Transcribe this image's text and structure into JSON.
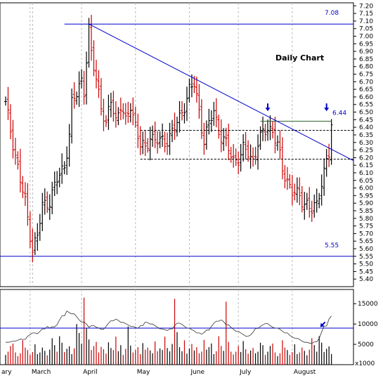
{
  "chart_data": [
    {
      "type": "ohlc",
      "title": "Daily Chart",
      "colors": {
        "up": "#000000",
        "down": "#cc0000",
        "lines": "#0000cc",
        "grid": "#bbbbbb"
      },
      "y_ticks": [
        "7.20",
        "7.15",
        "7.10",
        "7.05",
        "7.00",
        "6.95",
        "6.90",
        "6.85",
        "6.80",
        "6.75",
        "6.70",
        "6.65",
        "6.60",
        "6.55",
        "6.50",
        "6.45",
        "6.40",
        "6.35",
        "6.30",
        "6.25",
        "6.20",
        "6.15",
        "6.10",
        "6.05",
        "6.00",
        "5.95",
        "5.90",
        "5.85",
        "5.80",
        "5.75",
        "5.70",
        "5.65",
        "5.60",
        "5.55",
        "5.50",
        "5.45",
        "5.40"
      ],
      "ylim": [
        5.35,
        7.22
      ],
      "x_labels": [
        "ary",
        "March",
        "April",
        "May",
        "June",
        "July",
        "August"
      ],
      "month_start_bars": [
        -11,
        10,
        31,
        53,
        75,
        95,
        117
      ],
      "bar_count": 134,
      "anchors": [
        [
          0,
          6.55
        ],
        [
          3,
          6.3
        ],
        [
          6,
          6.05
        ],
        [
          8,
          5.9
        ],
        [
          9,
          5.8
        ],
        [
          11,
          5.6
        ],
        [
          13,
          5.68
        ],
        [
          15,
          5.88
        ],
        [
          18,
          5.92
        ],
        [
          21,
          6.05
        ],
        [
          24,
          6.15
        ],
        [
          26,
          6.35
        ],
        [
          27,
          6.55
        ],
        [
          29,
          6.62
        ],
        [
          31,
          6.72
        ],
        [
          32,
          6.65
        ],
        [
          34,
          7.03
        ],
        [
          35,
          6.88
        ],
        [
          37,
          6.72
        ],
        [
          39,
          6.55
        ],
        [
          41,
          6.4
        ],
        [
          43,
          6.58
        ],
        [
          45,
          6.45
        ],
        [
          47,
          6.55
        ],
        [
          49,
          6.42
        ],
        [
          51,
          6.55
        ],
        [
          53,
          6.42
        ],
        [
          55,
          6.28
        ],
        [
          57,
          6.25
        ],
        [
          59,
          6.35
        ],
        [
          61,
          6.32
        ],
        [
          63,
          6.3
        ],
        [
          65,
          6.3
        ],
        [
          67,
          6.35
        ],
        [
          69,
          6.4
        ],
        [
          71,
          6.45
        ],
        [
          73,
          6.55
        ],
        [
          75,
          6.65
        ],
        [
          77,
          6.68
        ],
        [
          79,
          6.5
        ],
        [
          81,
          6.32
        ],
        [
          83,
          6.42
        ],
        [
          85,
          6.5
        ],
        [
          87,
          6.38
        ],
        [
          89,
          6.32
        ],
        [
          91,
          6.25
        ],
        [
          93,
          6.18
        ],
        [
          95,
          6.2
        ],
        [
          97,
          6.25
        ],
        [
          99,
          6.23
        ],
        [
          101,
          6.18
        ],
        [
          103,
          6.3
        ],
        [
          105,
          6.35
        ],
        [
          107,
          6.4
        ],
        [
          109,
          6.38
        ],
        [
          111,
          6.28
        ],
        [
          112,
          6.2
        ],
        [
          113,
          6.12
        ],
        [
          115,
          6.05
        ],
        [
          117,
          5.98
        ],
        [
          119,
          5.95
        ],
        [
          121,
          5.92
        ],
        [
          123,
          5.9
        ],
        [
          125,
          5.85
        ],
        [
          127,
          5.88
        ],
        [
          129,
          6.05
        ],
        [
          131,
          6.18
        ],
        [
          132,
          6.22
        ],
        [
          133,
          6.4
        ]
      ],
      "annotations": [
        {
          "kind": "resistance",
          "value": 7.08,
          "label": "7.08"
        },
        {
          "kind": "support",
          "value": 5.55,
          "label": "5.55"
        },
        {
          "kind": "breakout_high",
          "value": 6.44,
          "label": "6.44"
        },
        {
          "kind": "trendline",
          "from": {
            "bar": 34,
            "value": 7.08
          },
          "to": {
            "bar": 142,
            "value": 6.18
          }
        },
        {
          "kind": "dashed_level",
          "value": 6.38,
          "from_bar": 55,
          "to_bar": 142
        },
        {
          "kind": "dashed_level",
          "value": 6.19,
          "from_bar": 55,
          "to_bar": 142
        },
        {
          "kind": "arrow_down",
          "bar": 107,
          "value": 6.52
        },
        {
          "kind": "arrow_down",
          "bar": 131,
          "value": 6.52
        }
      ]
    },
    {
      "type": "volume",
      "y_ticks": [
        "15000",
        "10000",
        "5000"
      ],
      "ylim": [
        0,
        18500
      ],
      "unit_label": "x1000",
      "avg_level": 9000,
      "seed_volumes": [
        2400,
        3200,
        4600,
        5200,
        3000,
        2100,
        2800,
        6000,
        4200,
        3600,
        2400,
        3100,
        5000,
        2600,
        3000,
        4200,
        3400,
        2300,
        3700,
        6500,
        4800,
        3200,
        7000,
        5400,
        3100,
        3900,
        4500,
        2600,
        4000,
        10000,
        7800,
        5200,
        16500,
        9000,
        6200,
        3600,
        4600,
        5600,
        3000,
        4400,
        3800,
        2700,
        5500,
        4100,
        3600,
        6900,
        3300,
        4800,
        2400,
        3900,
        9400,
        4700,
        3000,
        3600,
        4300,
        2600,
        5300,
        3700,
        4200,
        3500,
        2800,
        5700,
        3300,
        4000,
        3600,
        6900,
        4100,
        3300,
        5100,
        16200,
        8000,
        4300,
        3300,
        6000,
        2700,
        4000,
        5100,
        3500,
        4300,
        2800,
        3200,
        6100,
        3700,
        4300,
        5200,
        2600,
        3300,
        7000,
        4600,
        3400,
        15500,
        5600,
        3200,
        2500,
        3200,
        4600,
        3100,
        5800,
        3800,
        2700,
        3500,
        4100,
        2800,
        3200,
        5400,
        4800
      ],
      "avg_line_seed": [
        5500,
        5600,
        5800,
        6000,
        6300,
        6200,
        7000,
        7400,
        7800,
        7600,
        8200,
        8800,
        9400,
        9000,
        9300,
        9800,
        11000,
        12000,
        13200,
        12800,
        12500,
        11800,
        11000,
        10500,
        10000,
        9200,
        9600,
        9200,
        9000,
        8700,
        9400,
        10200,
        10800,
        11200,
        10900,
        10400,
        10100,
        9800,
        9400,
        9200,
        8900,
        9600,
        10500,
        10300,
        10000,
        9600,
        9200,
        8800,
        8600,
        8400,
        8800,
        9600,
        10200,
        9900,
        9400,
        9000,
        8600,
        8300,
        7800,
        7500,
        7900,
        8500,
        9400,
        10200,
        10700,
        11000,
        10600,
        9800,
        9200,
        8700,
        8200,
        7800,
        7400,
        7000,
        7300,
        8000,
        8900,
        9400,
        9800,
        10100,
        9600,
        9200,
        9000,
        8700,
        8200,
        7800,
        7200,
        6800,
        6500,
        6200,
        5800,
        5500,
        5300,
        5200,
        5600,
        6500,
        8000,
        9500,
        11200,
        12000
      ]
    }
  ]
}
